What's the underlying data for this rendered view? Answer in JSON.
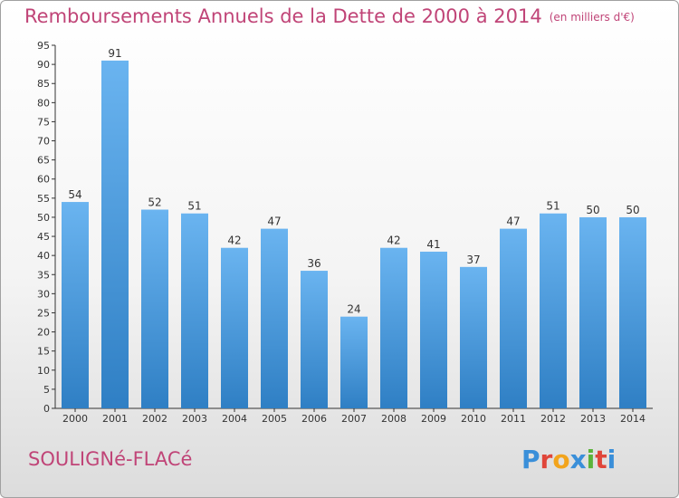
{
  "header": {
    "title": "Remboursements Annuels de la Dette de 2000 à 2014",
    "subtitle": "(en milliers d'€)"
  },
  "footer": {
    "commune": "SOULIGNé-FLACé",
    "logo_text": "Proxiti",
    "logo_colors": [
      "#3a8fd9",
      "#e0463a",
      "#f2a41c",
      "#3a8fd9",
      "#5bb33a",
      "#e0463a",
      "#3a8fd9"
    ]
  },
  "colors": {
    "bar_light": "#6ab4f0",
    "bar_dark": "#2f7fc4",
    "axis": "#333333",
    "grid": "#dddddd",
    "text": "#333333",
    "accent": "#c04477"
  },
  "chart_data": {
    "type": "bar",
    "title": "Remboursements Annuels de la Dette de 2000 à 2014",
    "subtitle": "(en milliers d'€)",
    "xlabel": "",
    "ylabel": "",
    "categories": [
      "2000",
      "2001",
      "2002",
      "2003",
      "2004",
      "2005",
      "2006",
      "2007",
      "2008",
      "2009",
      "2010",
      "2011",
      "2012",
      "2013",
      "2014"
    ],
    "values": [
      54,
      91,
      52,
      51,
      42,
      47,
      36,
      24,
      42,
      41,
      37,
      47,
      51,
      50,
      50
    ],
    "ylim": [
      0,
      95
    ],
    "yticks": [
      0,
      5,
      10,
      15,
      20,
      25,
      30,
      35,
      40,
      45,
      50,
      55,
      60,
      65,
      70,
      75,
      80,
      85,
      90,
      95
    ],
    "grid": false,
    "legend": "none"
  }
}
